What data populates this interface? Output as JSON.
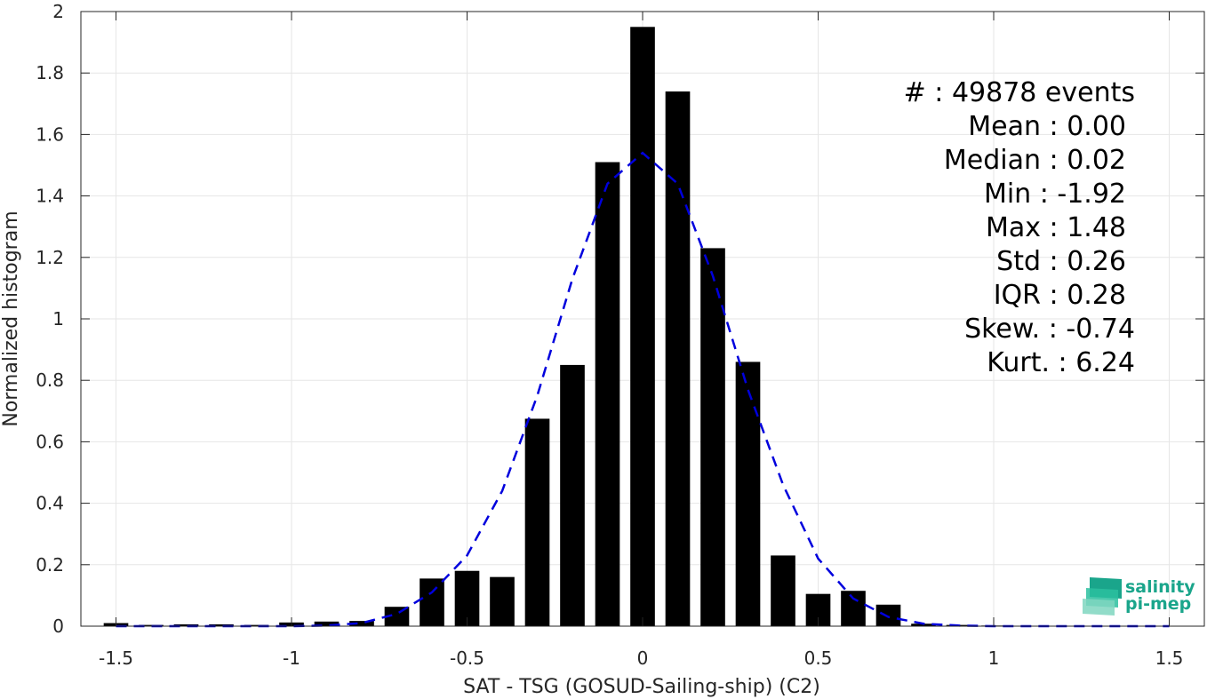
{
  "chart_data": {
    "type": "bar",
    "xlabel": "SAT - TSG (GOSUD-Sailing-ship) (C2)",
    "ylabel": "Normalized histogram",
    "xlim": [
      -1.6,
      1.6
    ],
    "ylim": [
      0,
      2
    ],
    "xticks": [
      -1.5,
      -1,
      -0.5,
      0,
      0.5,
      1,
      1.5
    ],
    "xtick_labels": [
      "-1.5",
      "-1",
      "-0.5",
      "0",
      "0.5",
      "1",
      "1.5"
    ],
    "yticks": [
      0,
      0.2,
      0.4,
      0.6,
      0.8,
      1,
      1.2,
      1.4,
      1.6,
      1.8,
      2
    ],
    "ytick_labels": [
      "0",
      "0.2",
      "0.4",
      "0.6",
      "0.8",
      "1",
      "1.2",
      "1.4",
      "1.6",
      "1.8",
      "2"
    ],
    "grid": true,
    "bin_width": 0.1,
    "bars": {
      "color": "#000000",
      "x": [
        -1.5,
        -1.4,
        -1.3,
        -1.2,
        -1.1,
        -1.0,
        -0.9,
        -0.8,
        -0.7,
        -0.6,
        -0.5,
        -0.4,
        -0.3,
        -0.2,
        -0.1,
        0.0,
        0.1,
        0.2,
        0.3,
        0.4,
        0.5,
        0.6,
        0.7,
        0.8,
        0.9,
        1.0,
        1.1,
        1.2,
        1.3,
        1.4,
        1.5
      ],
      "values": [
        0.01,
        0.004,
        0.006,
        0.006,
        0.004,
        0.012,
        0.015,
        0.017,
        0.063,
        0.155,
        0.18,
        0.16,
        0.675,
        0.85,
        1.51,
        1.95,
        1.74,
        1.23,
        0.86,
        0.23,
        0.105,
        0.115,
        0.07,
        0.008,
        0.004,
        0.002,
        0.001,
        0.001,
        0.001,
        0.001,
        0.001
      ]
    },
    "fit_curve": {
      "style": "dashed",
      "color": "#0000dd",
      "x": [
        -1.5,
        -1.4,
        -1.3,
        -1.2,
        -1.1,
        -1.0,
        -0.9,
        -0.8,
        -0.7,
        -0.6,
        -0.5,
        -0.4,
        -0.3,
        -0.2,
        -0.1,
        0.0,
        0.1,
        0.2,
        0.3,
        0.4,
        0.5,
        0.6,
        0.7,
        0.8,
        0.9,
        1.0,
        1.1,
        1.2,
        1.3,
        1.4,
        1.5
      ],
      "values": [
        0.0,
        0.0,
        0.0,
        0.0,
        0.0,
        0.0,
        0.002,
        0.01,
        0.04,
        0.11,
        0.23,
        0.44,
        0.75,
        1.13,
        1.44,
        1.54,
        1.44,
        1.14,
        0.77,
        0.46,
        0.22,
        0.09,
        0.03,
        0.008,
        0.002,
        0.0,
        0.0,
        0.0,
        0.0,
        0.0,
        0.0
      ]
    },
    "annotations": [
      "#  : 49878 events",
      "Mean : 0.00",
      "Median : 0.02",
      "Min : -1.92",
      "Max : 1.48",
      "Std : 0.26",
      "IQR : 0.28",
      "Skew. : -0.74",
      "Kurt. : 6.24"
    ]
  },
  "logo": {
    "line1": "salinity",
    "line2": "pi-mep",
    "colors": [
      "#1aa58b",
      "#2bbf9f",
      "#7fd6c0"
    ]
  }
}
